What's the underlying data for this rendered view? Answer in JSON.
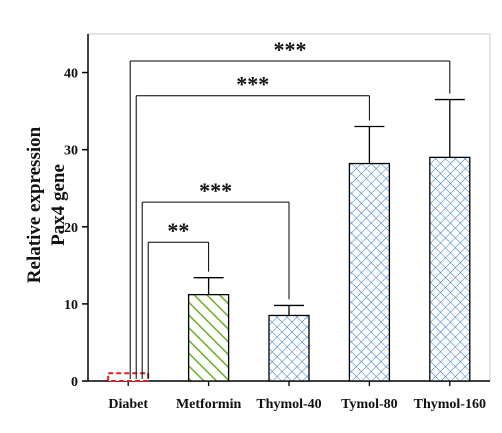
{
  "chart_data": {
    "type": "bar",
    "categories": [
      "Diabet",
      "Metformin",
      "Thymol-40",
      "Tymol-80",
      "Thymol-160"
    ],
    "values": [
      1.0,
      11.2,
      8.5,
      28.2,
      29.0
    ],
    "errors": [
      0.0,
      2.2,
      1.3,
      4.8,
      7.5
    ],
    "ylabel": [
      "Relative expression",
      "Pax4  gene"
    ],
    "ylim": [
      0,
      45
    ],
    "yticks": [
      0,
      10,
      20,
      30,
      40
    ],
    "grid": false,
    "legend": "none",
    "patterns": [
      "solid",
      "diagonal",
      "crosshatch",
      "crosshatch",
      "crosshatch"
    ],
    "colors": [
      "#e02020",
      "#6ab023",
      "#2a78c8",
      "#2a78c8",
      "#2a78c8"
    ],
    "significance": [
      {
        "from": 0,
        "to": 1,
        "label": "**",
        "y": 18.0
      },
      {
        "from": 0,
        "to": 2,
        "label": "***",
        "y": 23.2
      },
      {
        "from": 0,
        "to": 3,
        "label": "***",
        "y": 37.0
      },
      {
        "from": 0,
        "to": 4,
        "label": "***",
        "y": 41.5
      }
    ]
  }
}
